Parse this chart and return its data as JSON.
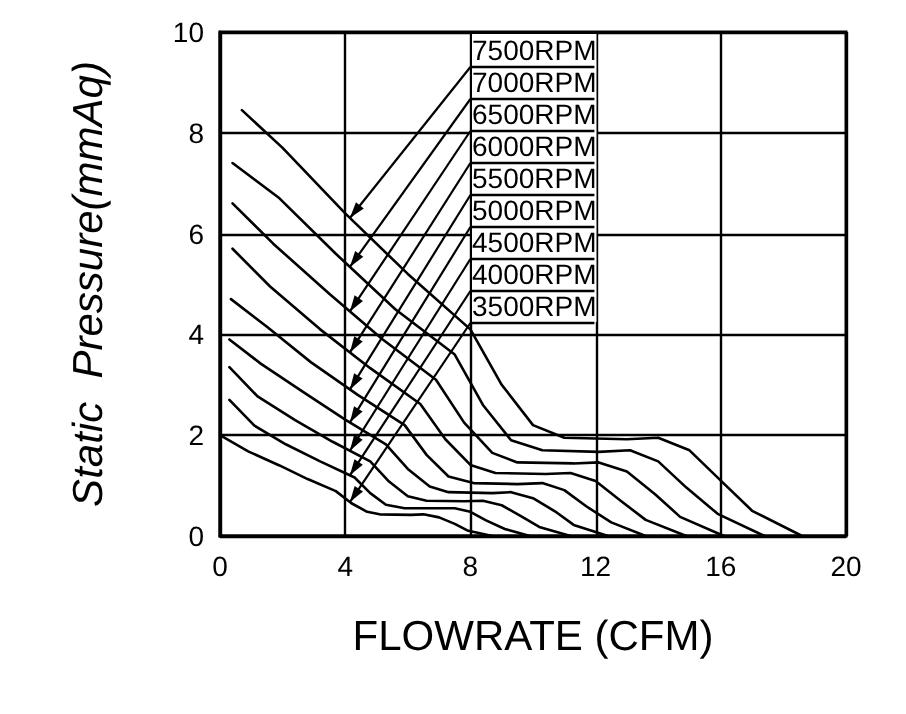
{
  "chart_data": {
    "type": "line",
    "xlabel": "FLOWRATE (CFM)",
    "ylabel": "Static  Pressure(mmAq)",
    "xlim": [
      0,
      20
    ],
    "xticks": [
      0,
      4,
      8,
      12,
      16,
      20
    ],
    "ylim": [
      0,
      10
    ],
    "yticks": [
      0,
      2,
      4,
      6,
      8,
      10
    ],
    "grid": true,
    "legend": "top",
    "marker": "none",
    "line_style": "solid",
    "series": [
      {
        "name": "7500RPM",
        "color": "#000000",
        "x": [
          0.7,
          2,
          4,
          6,
          8,
          9,
          10,
          11,
          13,
          14,
          15,
          16,
          17,
          18.6
        ],
        "values": [
          8.45,
          7.7,
          6.4,
          5.2,
          4.1,
          3.0,
          2.2,
          1.95,
          1.92,
          1.95,
          1.7,
          1.1,
          0.5,
          0
        ]
      },
      {
        "name": "7000RPM",
        "color": "#000000",
        "x": [
          0.4,
          1.9,
          3.7,
          5.6,
          7.5,
          8.4,
          9.3,
          10.3,
          12.1,
          13.1,
          14,
          14.9,
          15.9,
          17.4
        ],
        "values": [
          7.4,
          6.7,
          5.6,
          4.5,
          3.6,
          2.6,
          1.9,
          1.7,
          1.67,
          1.7,
          1.48,
          0.96,
          0.44,
          0
        ]
      },
      {
        "name": "6500RPM",
        "color": "#000000",
        "x": [
          0.4,
          1.7,
          3.5,
          5.2,
          6.9,
          7.8,
          8.7,
          9.5,
          11.3,
          12.1,
          13,
          13.9,
          14.7,
          16.1
        ],
        "values": [
          6.6,
          5.8,
          4.8,
          3.9,
          3.1,
          2.25,
          1.65,
          1.46,
          1.44,
          1.46,
          1.28,
          0.83,
          0.38,
          0
        ]
      },
      {
        "name": "6000RPM",
        "color": "#000000",
        "x": [
          0.4,
          1.6,
          3.2,
          4.8,
          6.4,
          7.2,
          8,
          8.8,
          10.4,
          11.2,
          12,
          12.8,
          13.6,
          14.9
        ],
        "values": [
          5.7,
          4.95,
          4.1,
          3.33,
          2.62,
          1.92,
          1.41,
          1.25,
          1.23,
          1.25,
          1.09,
          0.7,
          0.32,
          0
        ]
      },
      {
        "name": "5500RPM",
        "color": "#000000",
        "x": [
          0.35,
          1.5,
          2.9,
          4.4,
          5.9,
          6.6,
          7.3,
          8.1,
          9.5,
          10.3,
          11,
          11.7,
          12.5,
          13.6
        ],
        "values": [
          4.7,
          4.15,
          3.45,
          2.8,
          2.2,
          1.61,
          1.18,
          1.05,
          1.03,
          1.05,
          0.91,
          0.59,
          0.27,
          0
        ]
      },
      {
        "name": "5000RPM",
        "color": "#000000",
        "x": [
          0.3,
          1.3,
          2.7,
          4,
          5.3,
          6,
          6.7,
          7.3,
          8.7,
          9.3,
          10,
          10.7,
          11.3,
          12.4
        ],
        "values": [
          3.9,
          3.42,
          2.84,
          2.31,
          1.82,
          1.33,
          0.98,
          0.87,
          0.85,
          0.87,
          0.75,
          0.49,
          0.22,
          0
        ]
      },
      {
        "name": "4500RPM",
        "color": "#000000",
        "x": [
          0.3,
          1.2,
          2.4,
          3.6,
          4.8,
          5.4,
          6,
          6.6,
          7.8,
          8.4,
          9,
          9.6,
          10.2,
          11.2
        ],
        "values": [
          3.35,
          2.77,
          2.3,
          1.87,
          1.48,
          1.08,
          0.79,
          0.7,
          0.69,
          0.7,
          0.61,
          0.4,
          0.18,
          0
        ]
      },
      {
        "name": "4000RPM",
        "color": "#000000",
        "x": [
          0.3,
          1.1,
          2.1,
          3.2,
          4.3,
          4.8,
          5.3,
          5.9,
          6.9,
          7.5,
          8,
          8.5,
          9.1,
          9.9
        ],
        "values": [
          2.7,
          2.19,
          1.82,
          1.48,
          1.16,
          0.85,
          0.62,
          0.55,
          0.55,
          0.55,
          0.48,
          0.31,
          0.14,
          0
        ]
      },
      {
        "name": "3500RPM",
        "color": "#000000",
        "x": [
          0,
          0.9,
          1.9,
          2.8,
          3.7,
          4.2,
          4.7,
          5.1,
          6.1,
          6.5,
          7,
          7.5,
          7.9,
          8.7
        ],
        "values": [
          2.0,
          1.68,
          1.4,
          1.13,
          0.89,
          0.65,
          0.48,
          0.43,
          0.42,
          0.43,
          0.37,
          0.24,
          0.11,
          0
        ]
      }
    ]
  }
}
